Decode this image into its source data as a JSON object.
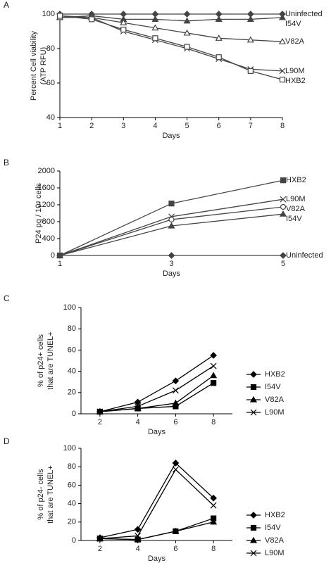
{
  "chart_data": [
    {
      "type": "line",
      "panel": "A",
      "y_label": [
        "Percent Cell viability",
        "(ATP RFU)"
      ],
      "x_label": "Days",
      "x": [
        1,
        2,
        3,
        4,
        5,
        6,
        7,
        8
      ],
      "xlim": [
        1,
        8
      ],
      "xticks": [
        1,
        2,
        3,
        4,
        5,
        6,
        7,
        8
      ],
      "ylim": [
        40,
        100
      ],
      "yticks": [
        40,
        60,
        80,
        100
      ],
      "label_style": "end",
      "series": [
        {
          "name": "Uninfected",
          "color": "#444444",
          "marker": "diamond",
          "values": [
            100,
            100,
            100,
            100,
            100,
            100,
            100,
            100
          ]
        },
        {
          "name": "I54V",
          "color": "#444444",
          "marker": "triangle",
          "values": [
            98,
            99,
            97,
            97,
            96,
            97,
            97,
            98
          ]
        },
        {
          "name": "V82A",
          "color": "#444444",
          "marker": "open-triangle",
          "values": [
            98,
            98,
            95,
            92,
            89,
            86,
            85,
            84
          ]
        },
        {
          "name": "L90M",
          "color": "#444444",
          "marker": "x",
          "values": [
            99,
            98,
            90,
            85,
            80,
            74,
            68,
            67
          ]
        },
        {
          "name": "HXB2",
          "color": "#444444",
          "marker": "open-square",
          "values": [
            99,
            97,
            91,
            86,
            81,
            75,
            67,
            62
          ]
        }
      ]
    },
    {
      "type": "line",
      "panel": "B",
      "y_label": [
        "P24 pg / 10⁶ cells"
      ],
      "x_label": "Days",
      "x": [
        1,
        3,
        5
      ],
      "xlim": [
        1,
        5
      ],
      "xticks": [
        1,
        3,
        5
      ],
      "ylim": [
        0,
        2000
      ],
      "yticks": [
        0,
        400,
        800,
        1200,
        1600,
        2000
      ],
      "label_style": "end",
      "series": [
        {
          "name": "HXB2",
          "color": "#444444",
          "marker": "square",
          "values": [
            0,
            1230,
            1780
          ]
        },
        {
          "name": "L90M",
          "color": "#444444",
          "marker": "x",
          "values": [
            0,
            920,
            1330
          ]
        },
        {
          "name": "V82A",
          "color": "#444444",
          "marker": "open-circle",
          "values": [
            0,
            850,
            1150
          ]
        },
        {
          "name": "I54V",
          "color": "#444444",
          "marker": "triangle",
          "values": [
            0,
            700,
            980
          ]
        },
        {
          "name": "Uninfected",
          "color": "#444444",
          "marker": "diamond",
          "values": [
            0,
            0,
            0
          ]
        }
      ]
    },
    {
      "type": "line",
      "panel": "C",
      "y_label": [
        "% of p24+ cells",
        "that are TUNEL+"
      ],
      "x_label": "Days",
      "x": [
        2,
        4,
        6,
        8
      ],
      "xlim": [
        1,
        9
      ],
      "xticks": [
        2,
        4,
        6,
        8
      ],
      "ylim": [
        0,
        100
      ],
      "yticks": [
        0,
        20,
        40,
        60,
        80,
        100
      ],
      "label_style": "legend",
      "series": [
        {
          "name": "HXB2",
          "color": "#000000",
          "marker": "diamond",
          "values": [
            2,
            11,
            31,
            55
          ]
        },
        {
          "name": "I54V",
          "color": "#000000",
          "marker": "square",
          "values": [
            2,
            5,
            7,
            29
          ]
        },
        {
          "name": "V82A",
          "color": "#000000",
          "marker": "triangle",
          "values": [
            2,
            5,
            10,
            36
          ]
        },
        {
          "name": "L90M",
          "color": "#000000",
          "marker": "x",
          "values": [
            2,
            7,
            22,
            45
          ]
        }
      ]
    },
    {
      "type": "line",
      "panel": "D",
      "y_label": [
        "% of p24- cells",
        "that are TUNEL+"
      ],
      "x_label": "Days",
      "x": [
        2,
        4,
        6,
        8
      ],
      "xlim": [
        1,
        9
      ],
      "xticks": [
        2,
        4,
        6,
        8
      ],
      "ylim": [
        0,
        100
      ],
      "yticks": [
        0,
        20,
        40,
        60,
        80,
        100
      ],
      "label_style": "legend",
      "series": [
        {
          "name": "HXB2",
          "color": "#000000",
          "marker": "diamond",
          "values": [
            3,
            12,
            84,
            46
          ]
        },
        {
          "name": "I54V",
          "color": "#000000",
          "marker": "square",
          "values": [
            2,
            1,
            10,
            24
          ]
        },
        {
          "name": "V82A",
          "color": "#000000",
          "marker": "triangle",
          "values": [
            2,
            1,
            10,
            20
          ]
        },
        {
          "name": "L90M",
          "color": "#000000",
          "marker": "x",
          "values": [
            2,
            5,
            77,
            38
          ]
        }
      ]
    }
  ]
}
